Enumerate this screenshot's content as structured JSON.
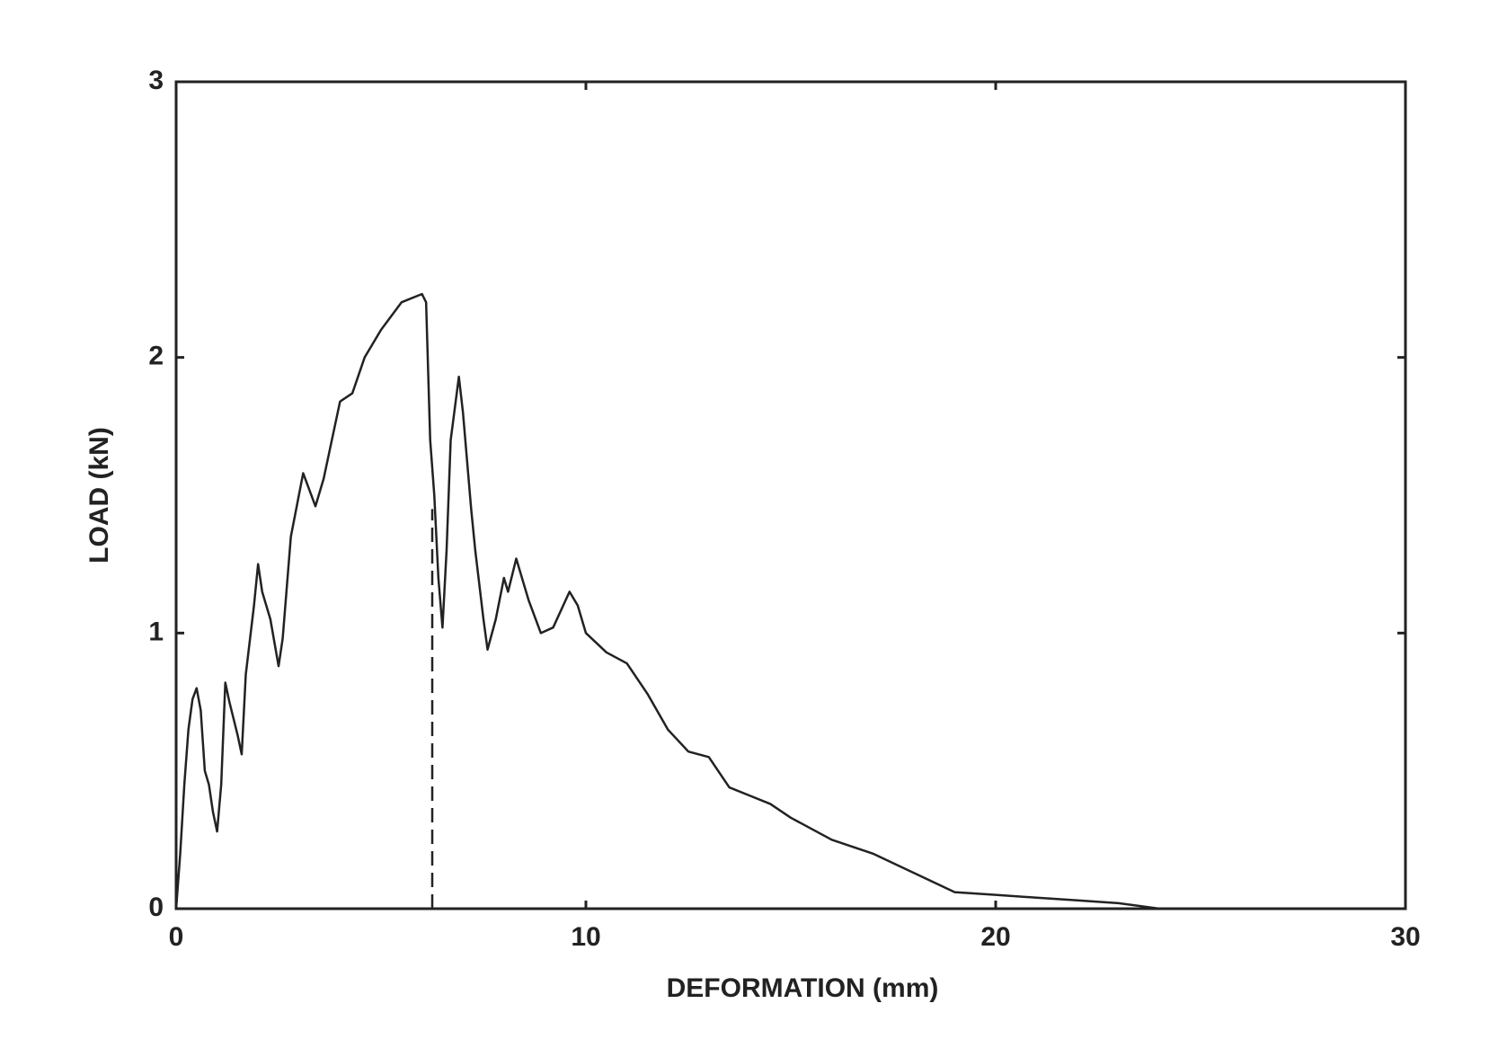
{
  "chart_data": {
    "type": "line",
    "x_label": "DEFORMATION (mm)",
    "y_label": "LOAD (kN)",
    "xlim": [
      0,
      30
    ],
    "xticks": [
      0,
      10,
      20,
      30
    ],
    "ylim": [
      0,
      3
    ],
    "yticks": [
      0,
      1,
      2,
      3
    ],
    "color": "#222222",
    "x": [
      0,
      0.1,
      0.2,
      0.3,
      0.4,
      0.5,
      0.6,
      0.7,
      0.8,
      0.9,
      1.0,
      1.1,
      1.2,
      1.3,
      1.5,
      1.6,
      1.7,
      1.9,
      2.0,
      2.1,
      2.3,
      2.5,
      2.6,
      2.8,
      3.1,
      3.4,
      3.6,
      3.8,
      4.0,
      4.3,
      4.6,
      5.0,
      5.5,
      6.0,
      6.1,
      6.2,
      6.3,
      6.4,
      6.5,
      6.6,
      6.7,
      6.9,
      7.0,
      7.2,
      7.3,
      7.5,
      7.6,
      7.8,
      8.0,
      8.1,
      8.3,
      8.6,
      8.9,
      9.2,
      9.6,
      9.8,
      10.0,
      10.5,
      11.0,
      11.5,
      12.0,
      12.5,
      13.0,
      13.5,
      14.0,
      14.5,
      15.0,
      16.0,
      17.0,
      18.0,
      19.0,
      20.0,
      21.0,
      22.0,
      23.0,
      24.0
    ],
    "values": [
      0,
      0.2,
      0.45,
      0.65,
      0.76,
      0.8,
      0.72,
      0.5,
      0.45,
      0.35,
      0.28,
      0.45,
      0.82,
      0.75,
      0.63,
      0.56,
      0.85,
      1.1,
      1.25,
      1.15,
      1.05,
      0.88,
      0.98,
      1.35,
      1.58,
      1.46,
      1.56,
      1.7,
      1.84,
      1.87,
      2.0,
      2.1,
      2.2,
      2.23,
      2.2,
      1.7,
      1.5,
      1.2,
      1.02,
      1.3,
      1.7,
      1.93,
      1.8,
      1.45,
      1.3,
      1.05,
      0.94,
      1.05,
      1.2,
      1.15,
      1.27,
      1.12,
      1.0,
      1.02,
      1.15,
      1.1,
      1.0,
      0.93,
      0.89,
      0.78,
      0.65,
      0.57,
      0.55,
      0.44,
      0.41,
      0.38,
      0.33,
      0.25,
      0.2,
      0.13,
      0.06,
      0.05,
      0.04,
      0.03,
      0.02,
      0.0
    ],
    "reference_line": {
      "x": 6.25,
      "y": [
        0,
        1.45
      ]
    }
  }
}
